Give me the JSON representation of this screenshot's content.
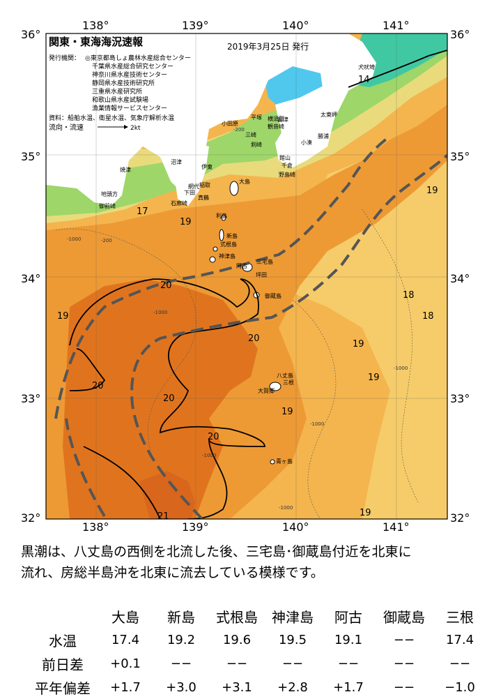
{
  "map": {
    "title": "関東・東海海況速報",
    "date_line": "2019年3月25日 発行",
    "agencies_label": "発行機関：",
    "agencies": [
      "◎東京都島しょ農林水産総合センター",
      "千葉県水産総合研究センター",
      "神奈川県水産技術センター",
      "静岡県水産技術研究所",
      "三重県水産研究所",
      "和歌山県水産試験場",
      "漁業情報サービスセンター"
    ],
    "sources": "資料：船舶水温、衛星水温、気象庁解析水温",
    "flow_label": "流向・流速",
    "flow_scale": "2kt",
    "lon_ticks": [
      "138°",
      "139°",
      "140°",
      "141°"
    ],
    "lat_ticks": [
      "36°",
      "35°",
      "34°",
      "33°",
      "32°"
    ],
    "isotherm_labels": [
      "14",
      "17",
      "19",
      "20",
      "20",
      "20",
      "20",
      "20",
      "19",
      "19",
      "18",
      "18",
      "19",
      "19",
      "19",
      "21",
      "19"
    ],
    "depth_labels": [
      "-1000",
      "-200",
      "-1000",
      "-1000",
      "-1000",
      "-1000",
      "-1000",
      "-200"
    ],
    "place_names": [
      "大島",
      "利島",
      "新島",
      "式根島",
      "神津島",
      "三宅島",
      "阿古",
      "坪田",
      "御蔵島",
      "八丈島",
      "大賀郷",
      "三根",
      "青ヶ島",
      "平塚",
      "横須賀",
      "観音崎",
      "富津",
      "三崎",
      "剣崎",
      "館山",
      "千倉",
      "野島崎",
      "小湊",
      "勝浦",
      "太東岬",
      "犬吠埼",
      "小田原",
      "真鶴",
      "伊東",
      "稲取",
      "下田",
      "石廊崎",
      "網代",
      "沼津",
      "焼津",
      "御前崎",
      "地頭方"
    ],
    "colors": {
      "warm_core": "#e0741e",
      "warm": "#ed9a35",
      "mid": "#f4b54e",
      "cool": "#f6cc6a",
      "cold": "#e9db7c",
      "green": "#9ed66a",
      "teal": "#40c8a2",
      "bay": "#50c8ee",
      "deep": "#d8661c",
      "land": "#ffffff"
    }
  },
  "summary": [
    "黒潮は、八丈島の西側を北流した後、三宅島･御蔵島付近を北東に",
    "流れ、房総半島沖を北東に流去している模様です。"
  ],
  "table": {
    "columns": [
      "大島",
      "新島",
      "式根島",
      "神津島",
      "阿古",
      "御蔵島",
      "三根"
    ],
    "rows": [
      {
        "label": "水温",
        "values": [
          "17.4",
          "19.2",
          "19.6",
          "19.5",
          "19.1",
          "−−",
          "17.4"
        ]
      },
      {
        "label": "前日差",
        "values": [
          "+0.1",
          "−−",
          "−−",
          "−−",
          "−−",
          "−−",
          "−−"
        ]
      },
      {
        "label": "平年偏差",
        "values": [
          "+1.7",
          "+3.0",
          "+3.1",
          "+2.8",
          "+1.7",
          "−−",
          "−1.0"
        ]
      }
    ]
  }
}
